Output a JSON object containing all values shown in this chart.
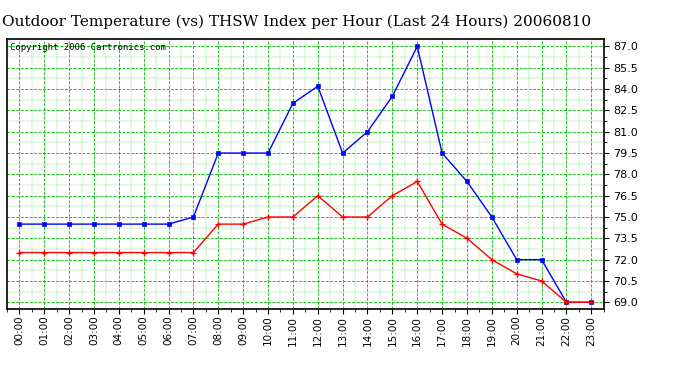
{
  "title": "Outdoor Temperature (vs) THSW Index per Hour (Last 24 Hours) 20060810",
  "copyright": "Copyright 2006 Cartronics.com",
  "hours": [
    0,
    1,
    2,
    3,
    4,
    5,
    6,
    7,
    8,
    9,
    10,
    11,
    12,
    13,
    14,
    15,
    16,
    17,
    18,
    19,
    20,
    21,
    22,
    23
  ],
  "hour_labels": [
    "00:00",
    "01:00",
    "02:00",
    "03:00",
    "04:00",
    "05:00",
    "06:00",
    "07:00",
    "08:00",
    "09:00",
    "10:00",
    "11:00",
    "12:00",
    "13:00",
    "14:00",
    "15:00",
    "16:00",
    "17:00",
    "18:00",
    "19:00",
    "20:00",
    "21:00",
    "22:00",
    "23:00"
  ],
  "blue_data": [
    74.5,
    74.5,
    74.5,
    74.5,
    74.5,
    74.5,
    74.5,
    75.0,
    79.5,
    79.5,
    79.5,
    83.0,
    84.2,
    79.5,
    81.0,
    83.5,
    87.0,
    79.5,
    77.5,
    75.0,
    72.0,
    72.0,
    69.0,
    69.0
  ],
  "red_data": [
    72.5,
    72.5,
    72.5,
    72.5,
    72.5,
    72.5,
    72.5,
    72.5,
    74.5,
    74.5,
    75.0,
    75.0,
    76.5,
    75.0,
    75.0,
    76.5,
    77.5,
    74.5,
    73.5,
    72.0,
    71.0,
    70.5,
    69.0,
    69.0
  ],
  "blue_color": "#0000FF",
  "red_color": "#FF0000",
  "bg_color": "#FFFFFF",
  "grid_color": "#00BB00",
  "ylim_min": 68.5,
  "ylim_max": 87.5,
  "yticks": [
    69.0,
    70.5,
    72.0,
    73.5,
    75.0,
    76.5,
    78.0,
    79.5,
    81.0,
    82.5,
    84.0,
    85.5,
    87.0
  ],
  "title_fontsize": 11,
  "copyright_fontsize": 6.5,
  "tick_fontsize": 7.5,
  "ytick_fontsize": 8
}
